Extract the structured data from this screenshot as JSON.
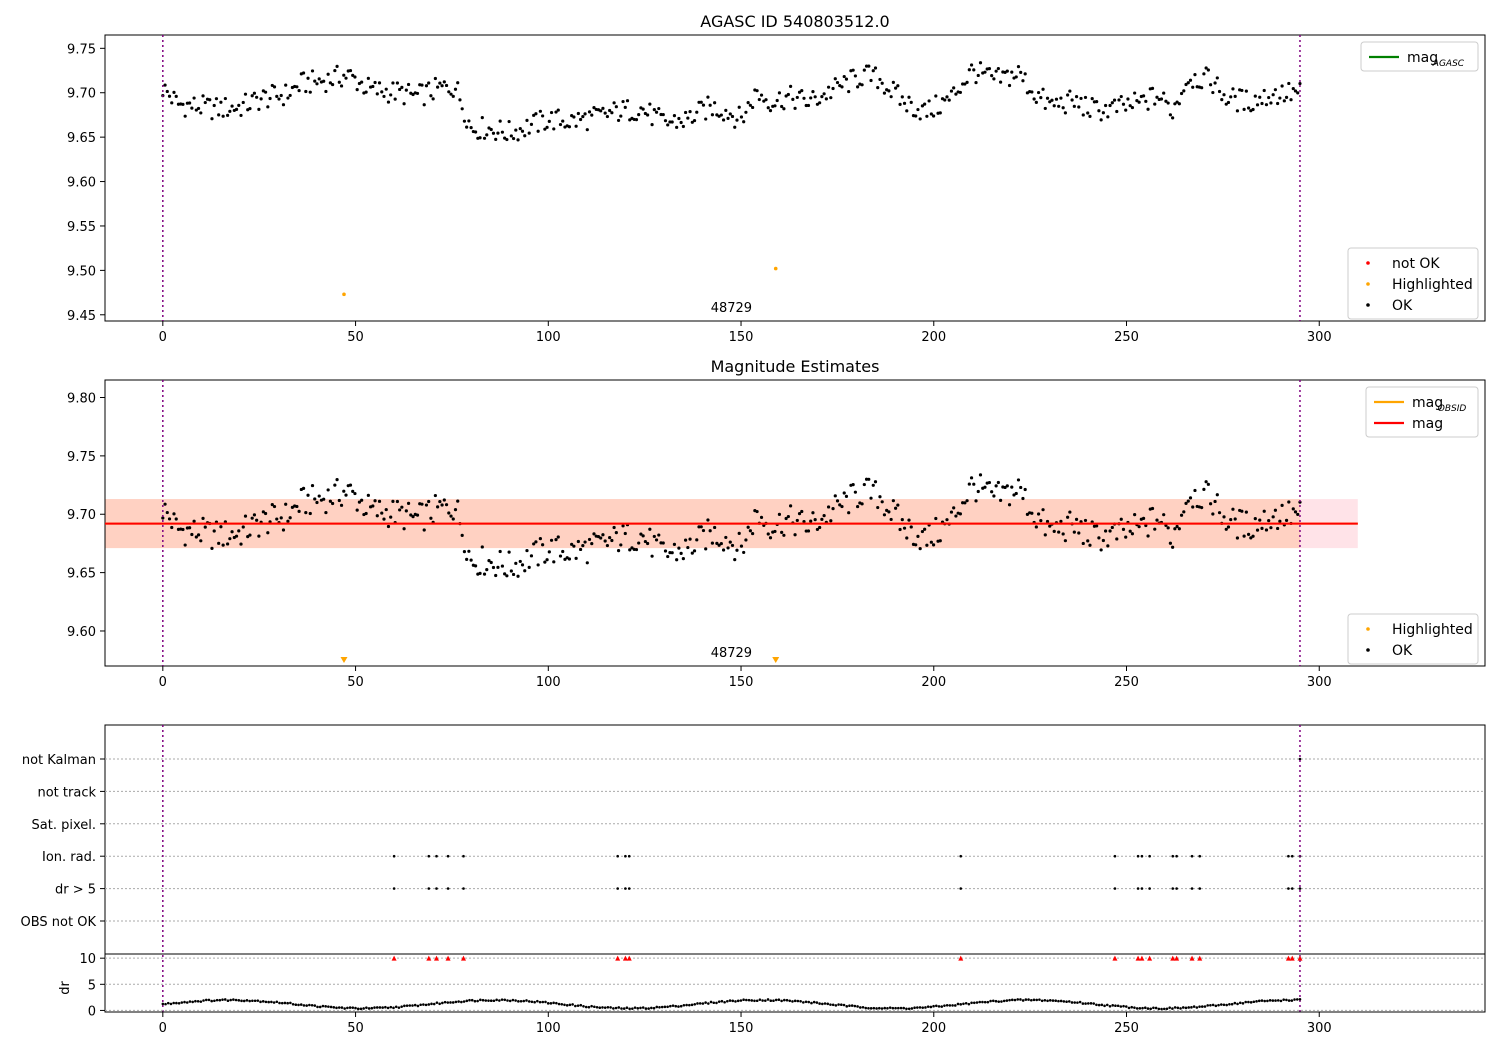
{
  "chart_data": [
    {
      "type": "scatter",
      "title": "AGASC ID 540803512.0",
      "xlim": [
        -15,
        343
      ],
      "ylim": [
        9.443,
        9.765
      ],
      "xticks": [
        0,
        50,
        100,
        150,
        200,
        250,
        300
      ],
      "yticks": [
        9.45,
        9.5,
        9.55,
        9.6,
        9.65,
        9.7,
        9.75
      ],
      "ytick_labels": [
        "9.45",
        "9.50",
        "9.55",
        "9.60",
        "9.65",
        "9.70",
        "9.75"
      ],
      "obs_boundaries": [
        0,
        295
      ],
      "annotation": {
        "text": "48729",
        "x": 147.5
      },
      "highlighted_points": [
        {
          "x": 47,
          "y": 9.473
        },
        {
          "x": 159,
          "y": 9.502
        }
      ],
      "legend_upper": [
        {
          "label": "mag",
          "sub": "AGASC",
          "color": "#008000"
        }
      ],
      "legend_lower": [
        {
          "label": "not OK",
          "color": "#ff0000"
        },
        {
          "label": "Highlighted",
          "color": "#ffa500"
        },
        {
          "label": "OK",
          "color": "#000000"
        }
      ]
    },
    {
      "type": "scatter",
      "title": "Magnitude Estimates",
      "xlim": [
        -15,
        343
      ],
      "ylim": [
        9.57,
        9.815
      ],
      "xticks": [
        0,
        50,
        100,
        150,
        200,
        250,
        300
      ],
      "yticks": [
        9.6,
        9.65,
        9.7,
        9.75,
        9.8
      ],
      "ytick_labels": [
        "9.60",
        "9.65",
        "9.70",
        "9.75",
        "9.80"
      ],
      "obs_boundaries": [
        0,
        295
      ],
      "annotation": {
        "text": "48729",
        "x": 147.5
      },
      "mag_line": {
        "value": 9.692,
        "x_range": [
          -15,
          310
        ],
        "band": [
          9.671,
          9.713
        ]
      },
      "highlighted_markers": [
        {
          "x": 47
        },
        {
          "x": 159
        }
      ],
      "legend_upper": [
        {
          "label": "mag",
          "sub": "OBSID",
          "color": "#ffa500"
        },
        {
          "label": "mag",
          "sub": "",
          "color": "#ff0000"
        }
      ],
      "legend_lower": [
        {
          "label": "Highlighted",
          "color": "#ffa500"
        },
        {
          "label": "OK",
          "color": "#000000"
        }
      ]
    },
    {
      "type": "scatter",
      "title": "",
      "xlim": [
        -15,
        343
      ],
      "categories": [
        "not Kalman",
        "not track",
        "Sat. pixel.",
        "Ion. rad.",
        "dr > 5",
        "OBS not OK"
      ],
      "obs_boundaries": [
        0,
        295
      ],
      "flagged_x": [
        60,
        69,
        71,
        74,
        78,
        118,
        120,
        121,
        207,
        247,
        253,
        254,
        256,
        262,
        263,
        267,
        269,
        292,
        293,
        295
      ],
      "not_kalman_x": [
        295
      ]
    },
    {
      "type": "scatter",
      "title": "",
      "ylabel": "dr",
      "xlim": [
        -15,
        343
      ],
      "ylim": [
        -0.3,
        10.8
      ],
      "xticks": [
        0,
        50,
        100,
        150,
        200,
        250,
        300
      ],
      "yticks": [
        0,
        5,
        10
      ],
      "ytick_labels": [
        "0",
        "5",
        "10"
      ],
      "clipped_value": 10,
      "flagged_x": [
        60,
        69,
        71,
        74,
        78,
        118,
        120,
        121,
        207,
        247,
        253,
        254,
        256,
        262,
        263,
        267,
        269,
        292,
        293,
        295
      ]
    }
  ]
}
